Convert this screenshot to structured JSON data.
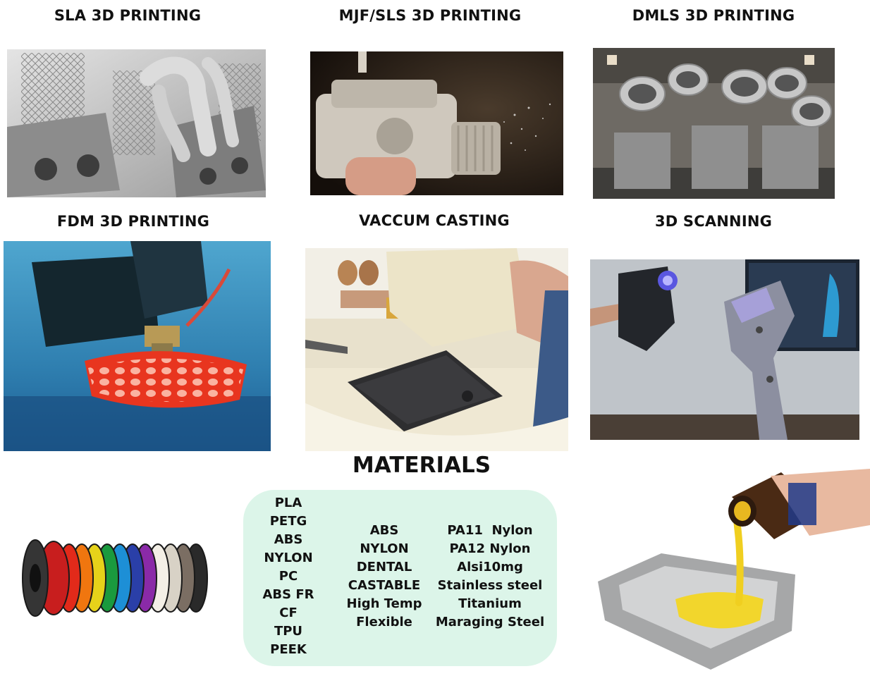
{
  "processes": [
    {
      "title": "SLA 3D PRINTING"
    },
    {
      "title": "MJF/SLS 3D PRINTING"
    },
    {
      "title": "DMLS 3D PRINTING"
    },
    {
      "title": "FDM 3D PRINTING"
    },
    {
      "title": "VACCUM CASTING"
    },
    {
      "title": "3D SCANNING"
    }
  ],
  "materials": {
    "title": "MATERIALS",
    "col1": [
      "PLA",
      "PETG",
      "ABS",
      "NYLON",
      "PC",
      "ABS FR",
      "CF",
      "TPU",
      "PEEK"
    ],
    "col2": [
      "ABS",
      "NYLON",
      "DENTAL",
      "CASTABLE",
      "High Temp",
      "Flexible"
    ],
    "col3": [
      "PA11  Nylon",
      "PA12 Nylon",
      "Alsi10mg",
      "Stainless steel",
      "Titanium",
      "Maraging Steel"
    ]
  },
  "colors": {
    "materials_box": "#dcf5e9",
    "text": "#111111"
  },
  "images": [
    {
      "name": "sla-print-photo"
    },
    {
      "name": "mjf-sls-print-photo"
    },
    {
      "name": "dmls-print-photo"
    },
    {
      "name": "fdm-print-photo"
    },
    {
      "name": "vacuum-casting-photo"
    },
    {
      "name": "3d-scanning-photo"
    },
    {
      "name": "filament-spools-photo"
    },
    {
      "name": "resin-pour-photo"
    }
  ]
}
